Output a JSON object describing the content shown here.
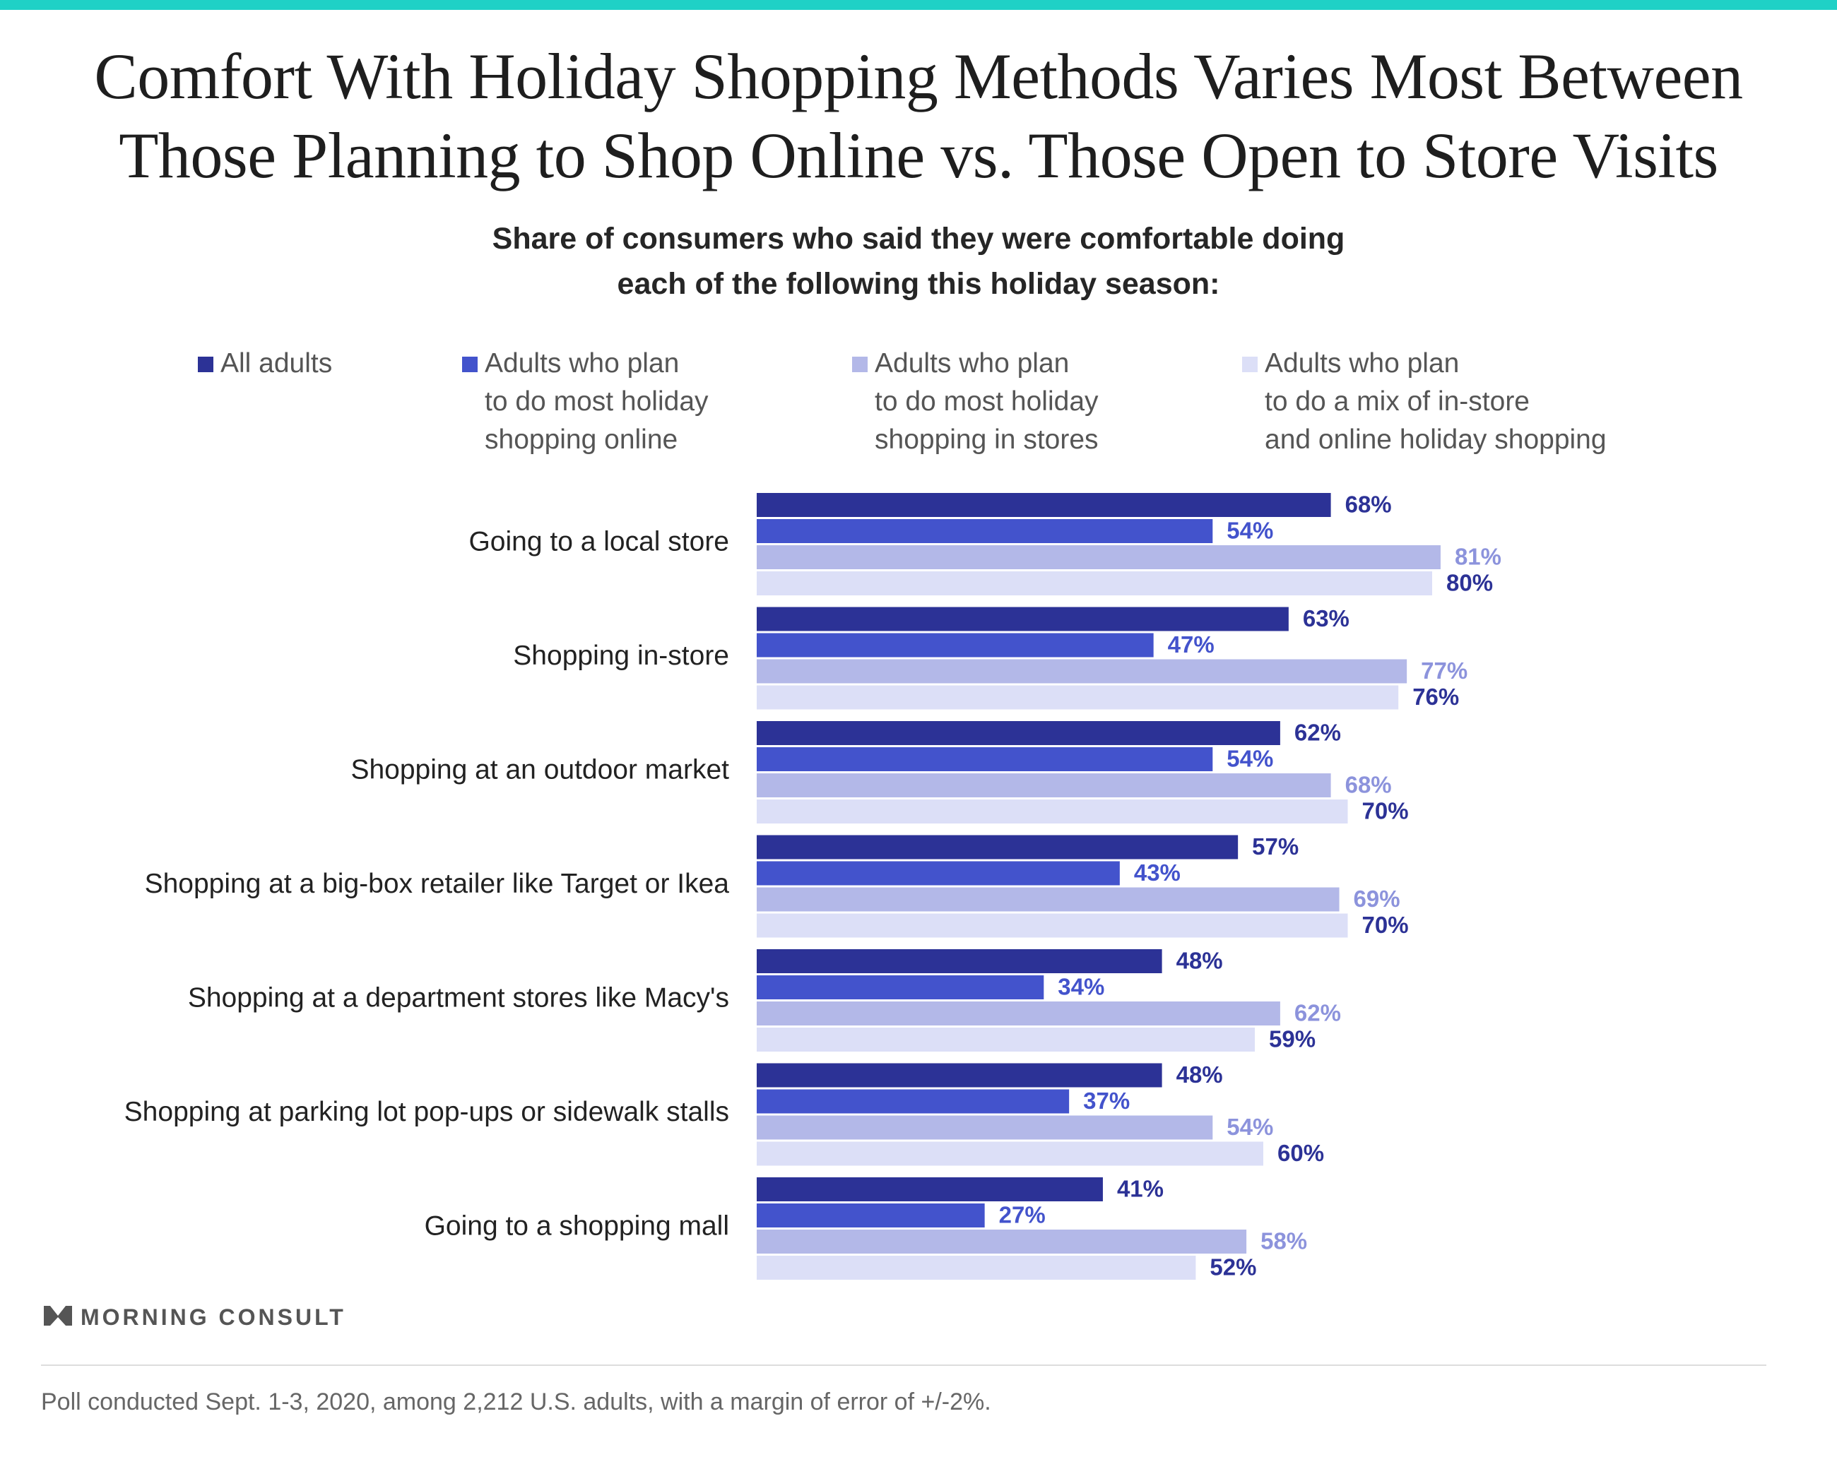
{
  "title_lines": [
    "Comfort With Holiday Shopping Methods Varies Most Between",
    "Those Planning to Shop Online vs. Those Open to Store Visits"
  ],
  "subtitle_lines": [
    "Share of consumers who said they were comfortable doing",
    "each of the following this holiday season:"
  ],
  "footnote": "Poll conducted Sept. 1-3, 2020, among 2,212 U.S. adults, with a margin of error of +/-2%.",
  "brand": "MORNING CONSULT",
  "colors": {
    "accent": "#1fd1c6",
    "series": [
      "#2c3296",
      "#4353cc",
      "#b3b8e8",
      "#dcdff7"
    ],
    "label_colors": [
      "#2c3296",
      "#4353cc",
      "#8c93dc",
      "#2c3296"
    ]
  },
  "legend": [
    {
      "lines": [
        "All adults"
      ]
    },
    {
      "lines": [
        "Adults who plan",
        "to do most holiday",
        "shopping online"
      ]
    },
    {
      "lines": [
        "Adults who plan",
        "to do most holiday",
        "shopping in stores"
      ]
    },
    {
      "lines": [
        "Adults who plan",
        "to do a mix of in-store",
        "and online holiday shopping"
      ]
    }
  ],
  "chart_data": {
    "type": "bar",
    "orientation": "horizontal",
    "unit": "%",
    "xlim": [
      0,
      100
    ],
    "grid": false,
    "legend_position": "top",
    "categories": [
      "Going to a local store",
      "Shopping in-store",
      "Shopping at an outdoor market",
      "Shopping at a big-box retailer like Target or Ikea",
      "Shopping at a department stores like Macy's",
      "Shopping at parking lot pop-ups or sidewalk stalls",
      "Going to a shopping mall"
    ],
    "series": [
      {
        "name": "All adults",
        "values": [
          68,
          63,
          62,
          57,
          48,
          48,
          41
        ]
      },
      {
        "name": "Adults who plan to do most holiday shopping online",
        "values": [
          54,
          47,
          54,
          43,
          34,
          37,
          27
        ]
      },
      {
        "name": "Adults who plan to do most holiday shopping in stores",
        "values": [
          81,
          77,
          68,
          69,
          62,
          54,
          58
        ]
      },
      {
        "name": "Adults who plan to do a mix of in-store and online holiday shopping",
        "values": [
          80,
          76,
          70,
          70,
          59,
          60,
          52
        ]
      }
    ]
  }
}
